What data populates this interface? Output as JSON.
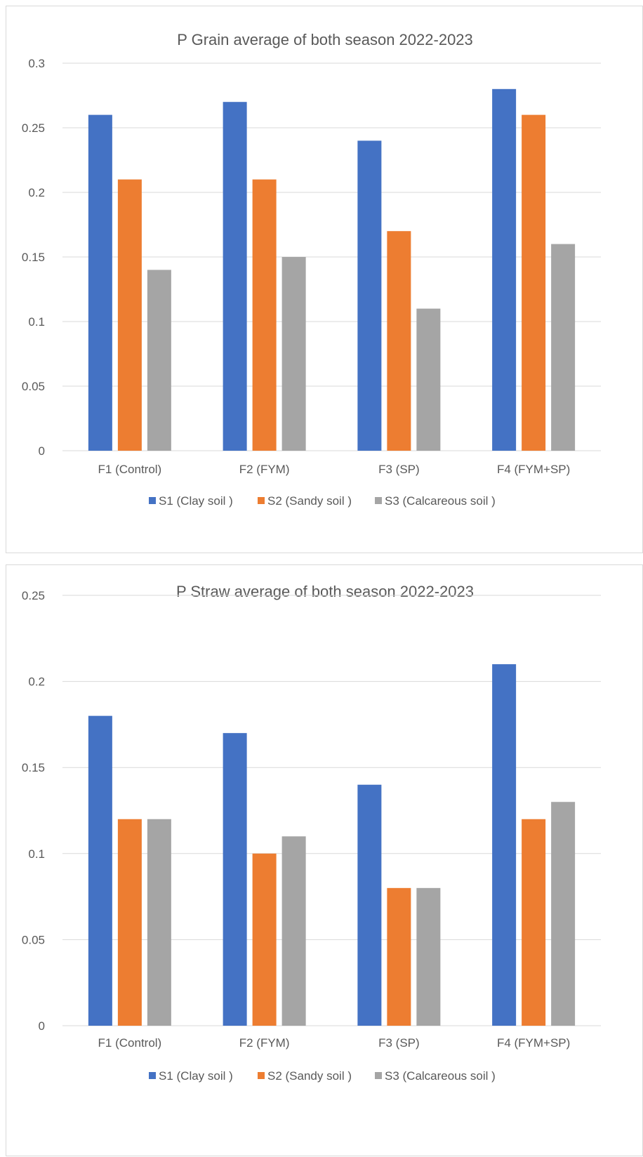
{
  "chart_data": [
    {
      "type": "bar",
      "title": "P Grain average of both season 2022-2023",
      "xlabel": "",
      "ylabel": "",
      "categories": [
        "F1 (Control)",
        "F2 (FYM)",
        "F3 (SP)",
        "F4 (FYM+SP)"
      ],
      "series": [
        {
          "name": "S1 (Clay soil )",
          "color": "#4472C4",
          "values": [
            0.26,
            0.27,
            0.24,
            0.28
          ]
        },
        {
          "name": "S2 (Sandy soil )",
          "color": "#ED7D31",
          "values": [
            0.21,
            0.21,
            0.17,
            0.26
          ]
        },
        {
          "name": "S3 (Calcareous soil )",
          "color": "#A5A5A5",
          "values": [
            0.14,
            0.15,
            0.11,
            0.16
          ]
        }
      ],
      "ylim": [
        0,
        0.3
      ],
      "yticks": [
        "0",
        "0.05",
        "0.1",
        "0.15",
        "0.2",
        "0.25",
        "0.3"
      ],
      "grid": true,
      "legend_position": "bottom"
    },
    {
      "type": "bar",
      "title": "P Straw average of both season 2022-2023",
      "xlabel": "",
      "ylabel": "",
      "categories": [
        "F1 (Control)",
        "F2 (FYM)",
        "F3 (SP)",
        "F4 (FYM+SP)"
      ],
      "series": [
        {
          "name": "S1 (Clay soil )",
          "color": "#4472C4",
          "values": [
            0.18,
            0.17,
            0.14,
            0.21
          ]
        },
        {
          "name": "S2 (Sandy soil )",
          "color": "#ED7D31",
          "values": [
            0.12,
            0.1,
            0.08,
            0.12
          ]
        },
        {
          "name": "S3 (Calcareous soil )",
          "color": "#A5A5A5",
          "values": [
            0.12,
            0.11,
            0.08,
            0.13
          ]
        }
      ],
      "ylim": [
        0,
        0.25
      ],
      "yticks": [
        "0",
        "0.05",
        "0.1",
        "0.15",
        "0.2",
        "0.25"
      ],
      "grid": true,
      "legend_position": "bottom"
    }
  ]
}
